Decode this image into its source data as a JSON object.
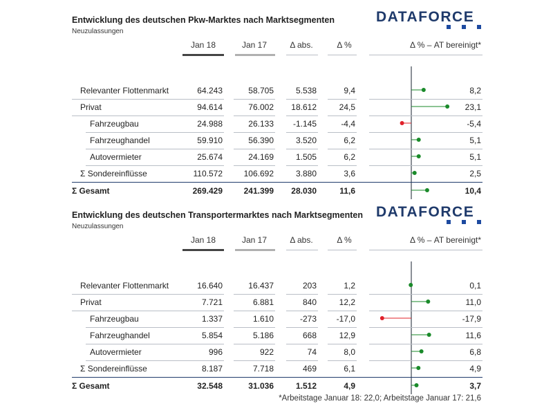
{
  "footnote": "*Arbeitstage Januar 18: 22,0; Arbeitstage Januar 17: 21,6",
  "chart_data": [
    {
      "type": "table",
      "title": "Entwicklung des deutschen Pkw-Marktes nach Marktsegmenten",
      "subtitle": "Neuzulassungen",
      "logo": "DATAFORCE",
      "columns": [
        "Jan 18",
        "Jan 17",
        "Δ abs.",
        "Δ %",
        "Δ % – AT bereinigt*"
      ],
      "rows": [
        {
          "label": "Relevanter Flottenmarkt",
          "level": 0,
          "cells": [
            "64.243",
            "58.705",
            "5.538",
            "9,4"
          ],
          "adj_label": "8,2",
          "adj": 8.2
        },
        {
          "label": "Privat",
          "level": 0,
          "cells": [
            "94.614",
            "76.002",
            "18.612",
            "24,5"
          ],
          "adj_label": "23,1",
          "adj": 23.1
        },
        {
          "label": "Fahrzeugbau",
          "level": 1,
          "cells": [
            "24.988",
            "26.133",
            "-1.145",
            "-4,4"
          ],
          "adj_label": "-5,4",
          "adj": -5.4
        },
        {
          "label": "Fahrzeughandel",
          "level": 1,
          "cells": [
            "59.910",
            "56.390",
            "3.520",
            "6,2"
          ],
          "adj_label": "5,1",
          "adj": 5.1
        },
        {
          "label": "Autovermieter",
          "level": 1,
          "cells": [
            "25.674",
            "24.169",
            "1.505",
            "6,2"
          ],
          "adj_label": "5,1",
          "adj": 5.1
        },
        {
          "label": "Σ Sondereinflüsse",
          "level": 0,
          "cells": [
            "110.572",
            "106.692",
            "3.880",
            "3,6"
          ],
          "adj_label": "2,5",
          "adj": 2.5
        },
        {
          "label": "Σ Gesamt",
          "level": 0,
          "total": true,
          "cells": [
            "269.429",
            "241.399",
            "28.030",
            "11,6"
          ],
          "adj_label": "10,4",
          "adj": 10.4
        }
      ]
    },
    {
      "type": "table",
      "title": "Entwicklung des deutschen Transportermarktes nach Marktsegmenten",
      "subtitle": "Neuzulassungen",
      "logo": "DATAFORCE",
      "columns": [
        "Jan 18",
        "Jan 17",
        "Δ abs.",
        "Δ %",
        "Δ % – AT bereinigt*"
      ],
      "rows": [
        {
          "label": "Relevanter Flottenmarkt",
          "level": 0,
          "cells": [
            "16.640",
            "16.437",
            "203",
            "1,2"
          ],
          "adj_label": "0,1",
          "adj": 0.1
        },
        {
          "label": "Privat",
          "level": 0,
          "cells": [
            "7.721",
            "6.881",
            "840",
            "12,2"
          ],
          "adj_label": "11,0",
          "adj": 11.0
        },
        {
          "label": "Fahrzeugbau",
          "level": 1,
          "cells": [
            "1.337",
            "1.610",
            "-273",
            "-17,0"
          ],
          "adj_label": "-17,9",
          "adj": -17.9
        },
        {
          "label": "Fahrzeughandel",
          "level": 1,
          "cells": [
            "5.854",
            "5.186",
            "668",
            "12,9"
          ],
          "adj_label": "11,6",
          "adj": 11.6
        },
        {
          "label": "Autovermieter",
          "level": 1,
          "cells": [
            "996",
            "922",
            "74",
            "8,0"
          ],
          "adj_label": "6,8",
          "adj": 6.8
        },
        {
          "label": "Σ Sondereinflüsse",
          "level": 0,
          "cells": [
            "8.187",
            "7.718",
            "469",
            "6,1"
          ],
          "adj_label": "4,9",
          "adj": 4.9
        },
        {
          "label": "Σ Gesamt",
          "level": 0,
          "total": true,
          "cells": [
            "32.548",
            "31.036",
            "1.512",
            "4,9"
          ],
          "adj_label": "3,7",
          "adj": 3.7
        }
      ]
    }
  ],
  "colors": {
    "positive": "#1a8a2a",
    "negative": "#e0202a",
    "accent": "#1f3a6b",
    "jan18_rule": "#444444",
    "jan17_rule": "#b0b0b0"
  }
}
